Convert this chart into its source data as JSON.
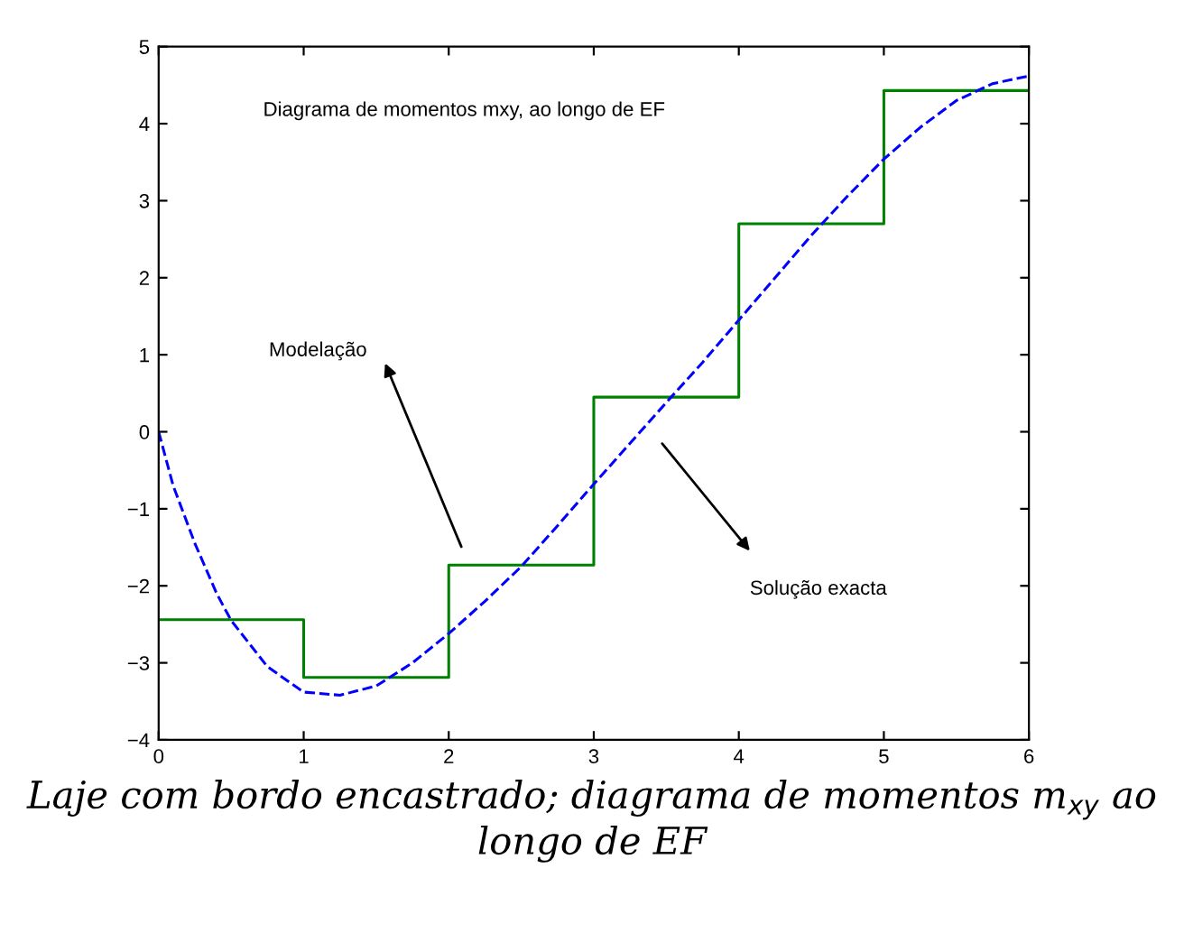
{
  "chart_data": {
    "type": "line",
    "title": "Diagrama de momentos mxy, ao longo de EF",
    "xlim": [
      0,
      6
    ],
    "ylim": [
      -4,
      5
    ],
    "xticks": [
      0,
      1,
      2,
      3,
      4,
      5,
      6
    ],
    "yticks": [
      -4,
      -3,
      -2,
      -1,
      0,
      1,
      2,
      3,
      4,
      5
    ],
    "grid": false,
    "legend": false,
    "series": [
      {
        "type": "step",
        "color": "#008000",
        "line_style": "solid",
        "x": [
          0,
          1,
          2,
          3,
          4,
          5,
          6
        ],
        "values": [
          -2.44,
          -3.19,
          -1.73,
          0.45,
          2.7,
          4.43,
          4.43
        ]
      },
      {
        "color": "#0000ff",
        "line_style": "dashed",
        "x": [
          0,
          0.1,
          0.25,
          0.4,
          0.5,
          0.75,
          1.0,
          1.25,
          1.5,
          1.75,
          2.0,
          2.25,
          2.5,
          2.75,
          3.0,
          3.25,
          3.5,
          3.75,
          4.0,
          4.25,
          4.5,
          4.75,
          5.0,
          5.25,
          5.5,
          5.75,
          6.0
        ],
        "values": [
          0,
          -0.7,
          -1.45,
          -2.1,
          -2.45,
          -3.05,
          -3.38,
          -3.42,
          -3.3,
          -3.0,
          -2.62,
          -2.2,
          -1.75,
          -1.22,
          -0.68,
          -0.15,
          0.38,
          0.9,
          1.45,
          2.0,
          2.55,
          3.06,
          3.54,
          3.95,
          4.3,
          4.52,
          4.62
        ]
      }
    ],
    "annotations": [
      "Modelação",
      "Solução exacta",
      "Laje com bordo encastrado; diagrama de momentos m$_{xy}$ ao longo de EF"
    ]
  }
}
